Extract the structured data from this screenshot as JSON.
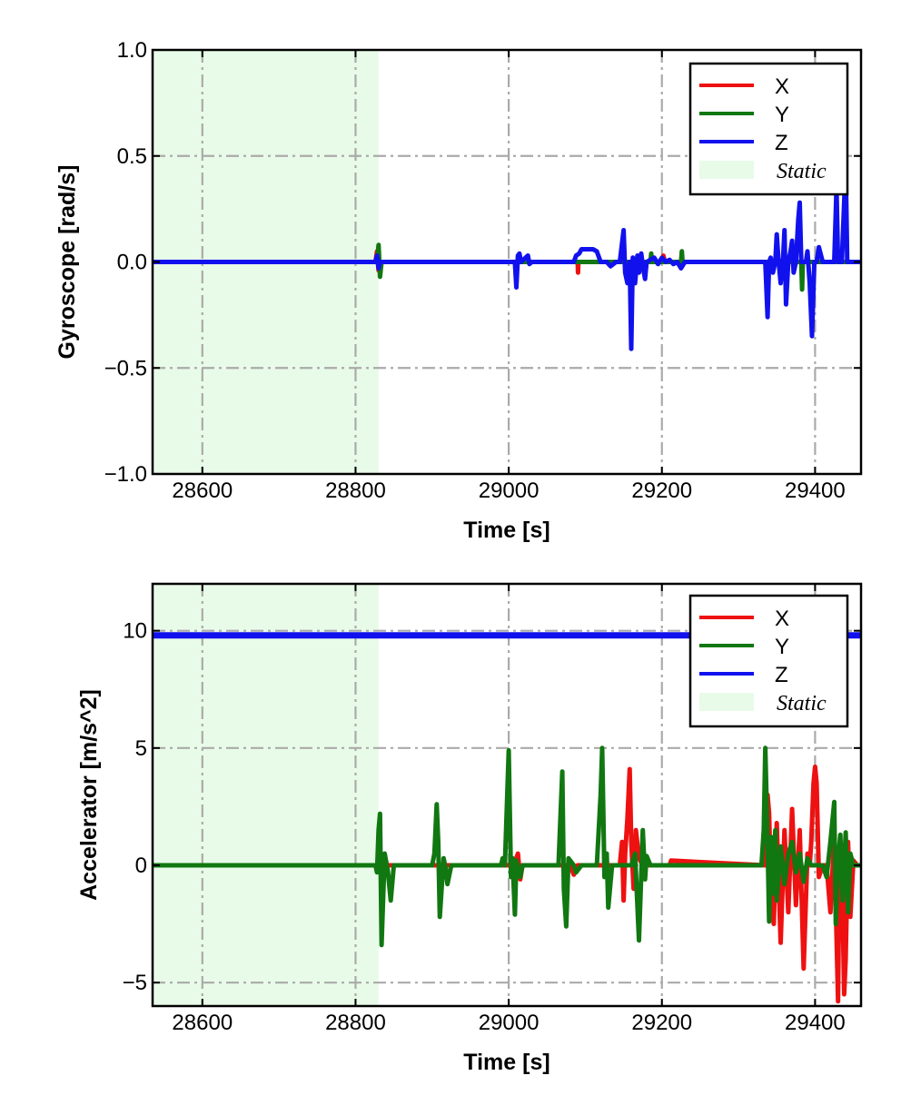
{
  "chart_data": [
    {
      "type": "line",
      "xlabel": "Time [s]",
      "ylabel": "Gyroscope [rad/s]",
      "xlim": [
        28535,
        29460
      ],
      "ylim": [
        -1.0,
        1.0
      ],
      "xticks": [
        28600,
        28800,
        29000,
        29200,
        29400
      ],
      "xtick_labels": [
        "28600",
        "28800",
        "29000",
        "29200",
        "29400"
      ],
      "yticks": [
        -1.0,
        -0.5,
        0.0,
        0.5,
        1.0
      ],
      "ytick_labels": [
        "−1.0",
        "−0.5",
        "0.0",
        "0.5",
        "1.0"
      ],
      "grid": true,
      "legend_position": "top-right",
      "static_region": {
        "label": "Static",
        "x": [
          28535,
          28830
        ],
        "color": "#e8fbe8"
      },
      "series": [
        {
          "name": "X",
          "color": "#ee1111",
          "x": [
            28535,
            28826,
            28828,
            28830,
            28832,
            29090,
            29090.5,
            29091,
            29160,
            29162,
            29164,
            29200,
            29202,
            29204,
            29460
          ],
          "y": [
            0.0,
            0.0,
            0.05,
            -0.04,
            0.0,
            0.0,
            -0.05,
            0.0,
            0.0,
            -0.08,
            0.0,
            0.0,
            0.03,
            0.0,
            0.0
          ]
        },
        {
          "name": "Y",
          "color": "#117711",
          "x": [
            28535,
            28828,
            28830,
            28832,
            28834,
            29185,
            29186,
            29187,
            29225,
            29226,
            29227,
            29382,
            29383,
            29384,
            29460
          ],
          "y": [
            0.0,
            0.0,
            0.08,
            -0.07,
            0.0,
            0.0,
            0.04,
            0.0,
            0.0,
            0.05,
            0.0,
            0.0,
            -0.13,
            0.0,
            0.0
          ]
        },
        {
          "name": "Z",
          "color": "#1111ee",
          "x": [
            28535,
            28826,
            28828,
            28830,
            28832,
            29008,
            29010,
            29012,
            29014,
            29016,
            29025,
            29027,
            29030,
            29060,
            29085,
            29088,
            29092,
            29095,
            29100,
            29105,
            29110,
            29115,
            29120,
            29125,
            29128,
            29133,
            29140,
            29145,
            29150,
            29152,
            29155,
            29158,
            29160,
            29162,
            29165,
            29168,
            29170,
            29173,
            29175,
            29178,
            29180,
            29190,
            29195,
            29200,
            29205,
            29210,
            29215,
            29220,
            29225,
            29230,
            29235,
            29250,
            29280,
            29300,
            29310,
            29320,
            29330,
            29335,
            29338,
            29340,
            29342,
            29345,
            29348,
            29350,
            29352,
            29355,
            29358,
            29360,
            29362,
            29365,
            29368,
            29370,
            29372,
            29375,
            29378,
            29380,
            29382,
            29385,
            29388,
            29390,
            29393,
            29396,
            29399,
            29402,
            29405,
            29410,
            29420,
            29425,
            29428,
            29430,
            29432,
            29435,
            29440,
            29442,
            29445,
            29447,
            29450,
            29460
          ],
          "y": [
            0.0,
            0.0,
            0.03,
            -0.03,
            0.0,
            0.0,
            -0.12,
            0.03,
            0.04,
            0.0,
            0.03,
            -0.01,
            0.0,
            0.0,
            0.0,
            0.03,
            0.04,
            0.06,
            0.06,
            0.06,
            0.06,
            0.05,
            0.0,
            0.0,
            0.0,
            -0.02,
            0.0,
            0.0,
            0.15,
            -0.05,
            -0.1,
            0.0,
            -0.41,
            0.02,
            -0.1,
            0.03,
            -0.05,
            0.04,
            -0.02,
            -0.08,
            0.0,
            0.02,
            -0.01,
            0.02,
            0.0,
            0.01,
            -0.01,
            0.0,
            -0.03,
            0.0,
            0.0,
            0.0,
            0.0,
            0.0,
            0.0,
            0.0,
            0.0,
            0.0,
            -0.26,
            0.0,
            0.02,
            -0.05,
            0.0,
            0.13,
            0.02,
            -0.1,
            0.0,
            0.15,
            -0.2,
            0.0,
            0.05,
            0.1,
            -0.05,
            0.0,
            0.2,
            0.28,
            0.0,
            0.0,
            0.0,
            0.05,
            -0.1,
            -0.35,
            0.0,
            0.0,
            0.07,
            0.0,
            0.0,
            0.0,
            0.35,
            0.0,
            0.0,
            0.0,
            0.47,
            0.0,
            0.0,
            0.0,
            0.0,
            0.0
          ]
        }
      ]
    },
    {
      "type": "line",
      "xlabel": "Time [s]",
      "ylabel": "Accelerator [m/s^2]",
      "xlim": [
        28535,
        29460
      ],
      "ylim": [
        -6.0,
        12.0
      ],
      "xticks": [
        28600,
        28800,
        29000,
        29200,
        29400
      ],
      "xtick_labels": [
        "28600",
        "28800",
        "29000",
        "29200",
        "29400"
      ],
      "yticks": [
        -5,
        0,
        5,
        10
      ],
      "ytick_labels": [
        "−5",
        "0",
        "5",
        "10"
      ],
      "grid": true,
      "legend_position": "top-right",
      "static_region": {
        "label": "Static",
        "x": [
          28535,
          28830
        ],
        "color": "#e8fbe8"
      },
      "series": [
        {
          "name": "X",
          "color": "#ee1111",
          "x": [
            28535,
            28830,
            28833,
            28836,
            29000,
            29010,
            29012,
            29015,
            29018,
            29080,
            29085,
            29090,
            29145,
            29148,
            29150,
            29152,
            29155,
            29158,
            29160,
            29163,
            29166,
            29170,
            29175,
            29210,
            29212,
            29335,
            29338,
            29340,
            29343,
            29346,
            29350,
            29355,
            29360,
            29365,
            29370,
            29375,
            29380,
            29385,
            29390,
            29393,
            29395,
            29398,
            29400,
            29402,
            29405,
            29410,
            29415,
            29420,
            29425,
            29428,
            29430,
            29432,
            29435,
            29438,
            29440,
            29443,
            29446,
            29450,
            29455,
            29460
          ],
          "y": [
            0.0,
            0.0,
            -0.3,
            0.0,
            0.0,
            0.3,
            0.5,
            -0.6,
            0.0,
            0.0,
            -0.4,
            0.0,
            0.0,
            1.0,
            -1.5,
            0.5,
            2.0,
            4.1,
            1.0,
            -1.0,
            1.5,
            0.3,
            0.0,
            0.0,
            0.2,
            0.0,
            3.0,
            2.2,
            -1.5,
            -2.5,
            1.8,
            -3.3,
            1.5,
            -2.0,
            2.4,
            -1.7,
            1.5,
            -4.4,
            0.5,
            0.0,
            1.0,
            3.5,
            4.2,
            3.5,
            -0.5,
            0.0,
            0.0,
            -2.0,
            1.2,
            -3.0,
            -5.8,
            0.8,
            0.2,
            -5.5,
            -4.0,
            1.0,
            -2.2,
            0.2,
            0.0,
            0.0
          ]
        },
        {
          "name": "Y",
          "color": "#117711",
          "x": [
            28535,
            28826,
            28828,
            28830,
            28832,
            28834,
            28838,
            28842,
            28846,
            28850,
            28900,
            28903,
            28906,
            28908,
            28910,
            28915,
            28918,
            28920,
            28925,
            28990,
            28992,
            28995,
            29000,
            29003,
            29005,
            29008,
            29010,
            29015,
            29018,
            29030,
            29065,
            29070,
            29072,
            29075,
            29078,
            29085,
            29088,
            29095,
            29115,
            29120,
            29122,
            29125,
            29128,
            29130,
            29135,
            29140,
            29160,
            29165,
            29170,
            29175,
            29178,
            29180,
            29185,
            29190,
            29330,
            29333,
            29335,
            29338,
            29340,
            29343,
            29345,
            29348,
            29350,
            29355,
            29360,
            29365,
            29370,
            29375,
            29380,
            29385,
            29390,
            29395,
            29400,
            29405,
            29410,
            29415,
            29420,
            29425,
            29427,
            29430,
            29433,
            29436,
            29440,
            29443,
            29446,
            29450,
            29455,
            29460
          ],
          "y": [
            0.0,
            0.0,
            -0.3,
            1.5,
            2.2,
            -3.4,
            0.5,
            -0.2,
            -1.5,
            0.0,
            0.0,
            0.5,
            2.6,
            1.0,
            -2.2,
            0.3,
            -0.2,
            -0.8,
            0.0,
            0.0,
            0.3,
            0.0,
            4.9,
            -0.5,
            0.3,
            -2.1,
            0.2,
            -0.5,
            0.0,
            0.0,
            0.0,
            4.0,
            -1.0,
            -2.6,
            0.3,
            0.0,
            -0.3,
            0.0,
            0.0,
            3.0,
            5.0,
            -0.5,
            0.5,
            -1.8,
            0.0,
            0.0,
            0.0,
            0.5,
            -3.2,
            1.5,
            -0.6,
            0.4,
            0.0,
            0.0,
            0.0,
            1.5,
            5.0,
            1.0,
            -2.4,
            1.2,
            -1.2,
            1.5,
            -1.5,
            0.8,
            -0.8,
            0.5,
            1.0,
            -0.3,
            0.5,
            -0.7,
            0.3,
            0.0,
            0.0,
            0.0,
            0.0,
            -0.5,
            1.0,
            2.7,
            -2.5,
            0.2,
            1.3,
            -1.5,
            1.4,
            -2.0,
            0.5,
            0.0,
            0.0,
            0.0
          ]
        },
        {
          "name": "Z",
          "color": "#1111ee",
          "x": [
            28535,
            28800,
            29000,
            29200,
            29400,
            29460
          ],
          "y": [
            9.8,
            9.8,
            9.8,
            9.8,
            9.8,
            9.8
          ]
        }
      ]
    }
  ]
}
